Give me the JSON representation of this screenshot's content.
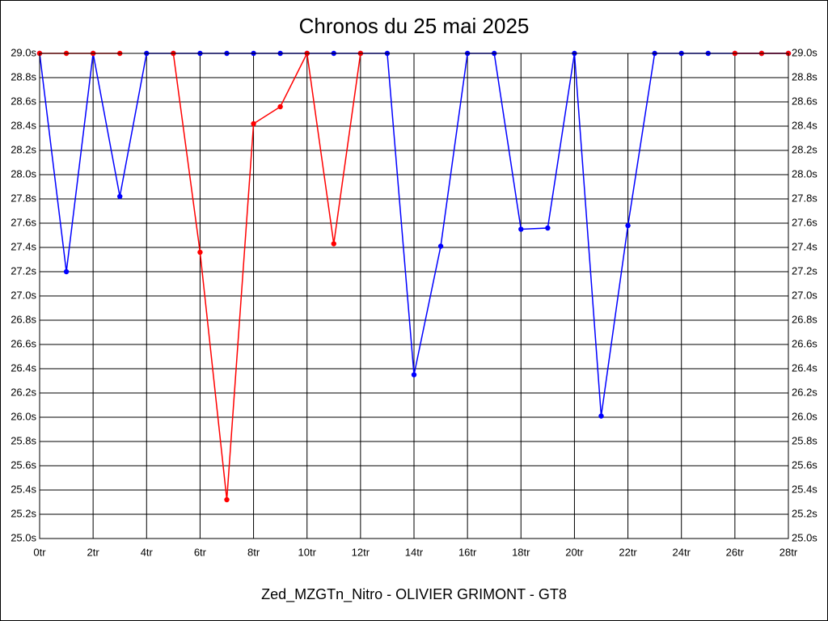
{
  "chart_data": {
    "type": "line",
    "title": "Chronos du 25 mai 2025",
    "x_label": "Zed_MZGTn_Nitro - OLIVIER GRIMONT - GT8",
    "x": [
      0,
      1,
      2,
      3,
      4,
      5,
      6,
      7,
      8,
      9,
      10,
      11,
      12,
      13,
      14,
      15,
      16,
      17,
      18,
      19,
      20,
      21,
      22,
      23,
      24,
      25,
      26,
      27,
      28
    ],
    "series": [
      {
        "color": "#0000ff",
        "values": [
          29.0,
          27.2,
          29.0,
          27.82,
          29.0,
          29.0,
          29.0,
          29.0,
          29.0,
          29.0,
          29.0,
          29.0,
          29.0,
          29.0,
          26.35,
          27.41,
          29.0,
          29.0,
          27.55,
          27.56,
          29.0,
          26.01,
          27.58,
          29.0,
          29.0,
          29.0,
          29.0,
          29.0,
          29.0
        ]
      },
      {
        "color": "#ff0000",
        "values": [
          29.0,
          29.0,
          29.0,
          29.0,
          null,
          29.0,
          27.36,
          25.32,
          28.42,
          28.56,
          29.0,
          27.43,
          29.0,
          null,
          null,
          null,
          null,
          null,
          null,
          null,
          null,
          null,
          null,
          null,
          null,
          null,
          29.0,
          29.0,
          29.0
        ]
      }
    ],
    "xlim": [
      0,
      28
    ],
    "xticks": [
      {
        "value": 0,
        "label": "0tr"
      },
      {
        "value": 2,
        "label": "2tr"
      },
      {
        "value": 4,
        "label": "4tr"
      },
      {
        "value": 6,
        "label": "6tr"
      },
      {
        "value": 8,
        "label": "8tr"
      },
      {
        "value": 10,
        "label": "10tr"
      },
      {
        "value": 12,
        "label": "12tr"
      },
      {
        "value": 14,
        "label": "14tr"
      },
      {
        "value": 16,
        "label": "16tr"
      },
      {
        "value": 18,
        "label": "18tr"
      },
      {
        "value": 20,
        "label": "20tr"
      },
      {
        "value": 22,
        "label": "22tr"
      },
      {
        "value": 24,
        "label": "24tr"
      },
      {
        "value": 26,
        "label": "26tr"
      },
      {
        "value": 28,
        "label": "28tr"
      }
    ],
    "ylim": [
      25.0,
      29.0
    ],
    "yticks": [
      {
        "value": 25.0,
        "label": "25.0s"
      },
      {
        "value": 25.2,
        "label": "25.2s"
      },
      {
        "value": 25.4,
        "label": "25.4s"
      },
      {
        "value": 25.6,
        "label": "25.6s"
      },
      {
        "value": 25.8,
        "label": "25.8s"
      },
      {
        "value": 26.0,
        "label": "26.0s"
      },
      {
        "value": 26.2,
        "label": "26.2s"
      },
      {
        "value": 26.4,
        "label": "26.4s"
      },
      {
        "value": 26.6,
        "label": "26.6s"
      },
      {
        "value": 26.8,
        "label": "26.8s"
      },
      {
        "value": 27.0,
        "label": "27.0s"
      },
      {
        "value": 27.2,
        "label": "27.2s"
      },
      {
        "value": 27.4,
        "label": "27.4s"
      },
      {
        "value": 27.6,
        "label": "27.6s"
      },
      {
        "value": 27.8,
        "label": "27.8s"
      },
      {
        "value": 28.0,
        "label": "28.0s"
      },
      {
        "value": 28.2,
        "label": "28.2s"
      },
      {
        "value": 28.4,
        "label": "28.4s"
      },
      {
        "value": 28.6,
        "label": "28.6s"
      },
      {
        "value": 28.8,
        "label": "28.8s"
      },
      {
        "value": 29.0,
        "label": "29.0s"
      }
    ],
    "grid": true
  }
}
